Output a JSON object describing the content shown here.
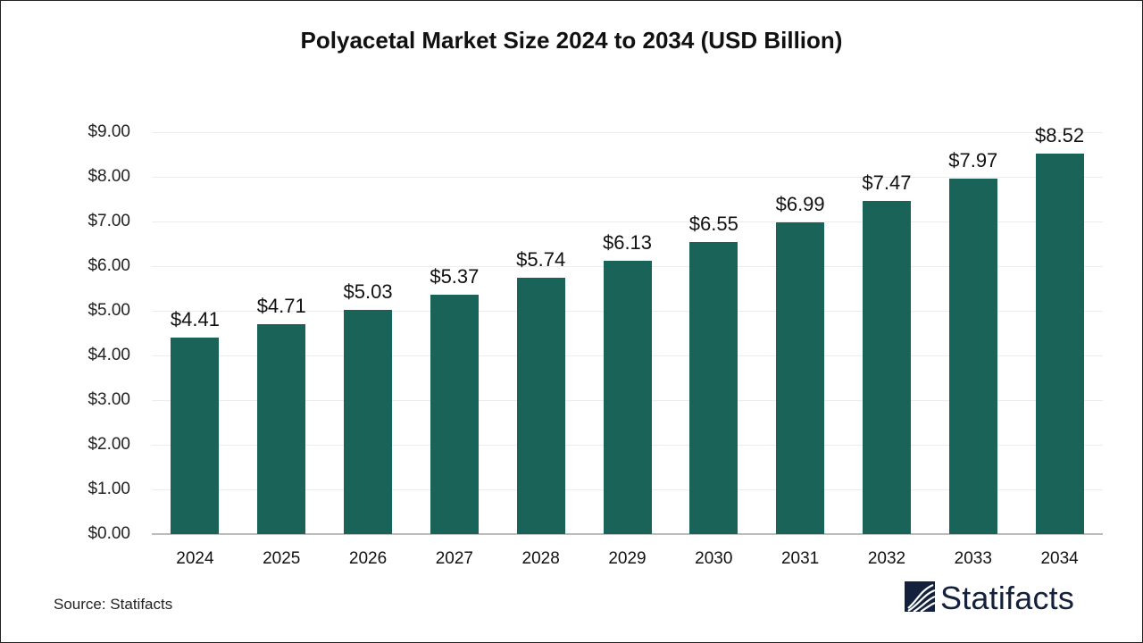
{
  "title": "Polyacetal Market Size 2024 to 2034 (USD Billion)",
  "source": "Source: Statifacts",
  "logo": {
    "text": "Statifacts",
    "icon": "statifacts-wave-logo-icon",
    "color": "#14213d"
  },
  "colors": {
    "bar": "#1a6358",
    "grid": "#ececec",
    "axis": "#bdbdbd"
  },
  "y_ticks": [
    "$0.00",
    "$1.00",
    "$2.00",
    "$3.00",
    "$4.00",
    "$5.00",
    "$6.00",
    "$7.00",
    "$8.00",
    "$9.00"
  ],
  "bar_labels": [
    "$4.41",
    "$4.71",
    "$5.03",
    "$5.37",
    "$5.74",
    "$6.13",
    "$6.55",
    "$6.99",
    "$7.47",
    "$7.97",
    "$8.52"
  ],
  "chart_data": {
    "type": "bar",
    "title": "Polyacetal Market Size 2024 to 2034 (USD Billion)",
    "xlabel": "",
    "ylabel": "",
    "categories": [
      "2024",
      "2025",
      "2026",
      "2027",
      "2028",
      "2029",
      "2030",
      "2031",
      "2032",
      "2033",
      "2034"
    ],
    "values": [
      4.41,
      4.71,
      5.03,
      5.37,
      5.74,
      6.13,
      6.55,
      6.99,
      7.47,
      7.97,
      8.52
    ],
    "ylim": [
      0,
      9
    ],
    "y_tick_step": 1,
    "y_tick_format": "$0.00",
    "grid": true,
    "legend": "none",
    "data_labels": true,
    "bar_color": "#1a6358"
  }
}
